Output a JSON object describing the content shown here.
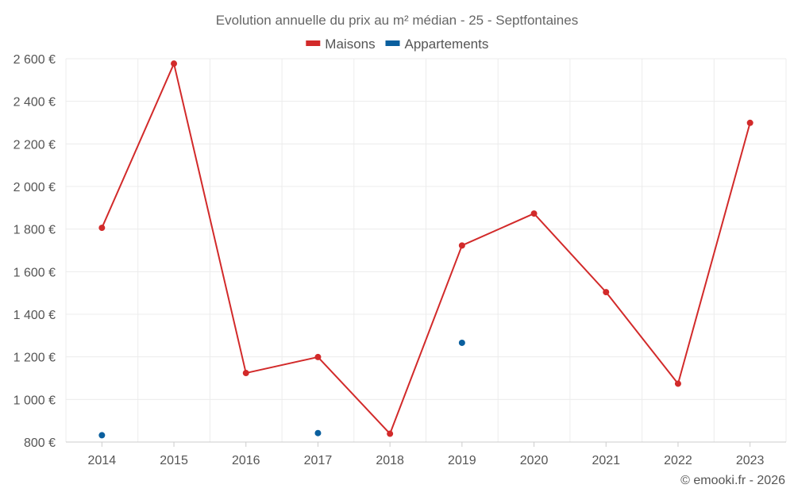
{
  "chart_data": {
    "type": "line",
    "title": "Evolution annuelle du prix au m² médian - 25 - Septfontaines",
    "categories": [
      "2014",
      "2015",
      "2016",
      "2017",
      "2018",
      "2019",
      "2020",
      "2021",
      "2022",
      "2023"
    ],
    "series": [
      {
        "name": "Maisons",
        "color": "#d22a2a",
        "values": [
          1806,
          2577,
          1124,
          1199,
          839,
          1723,
          1873,
          1504,
          1074,
          2299
        ]
      },
      {
        "name": "Appartements",
        "color": "#0a5f9e",
        "values": [
          832,
          null,
          null,
          842,
          null,
          1266,
          null,
          null,
          null,
          null
        ]
      }
    ],
    "ylim": [
      800,
      2600
    ],
    "yticks": [
      800,
      1000,
      1200,
      1400,
      1600,
      1800,
      2000,
      2200,
      2400,
      2600
    ],
    "ytick_labels": [
      "800 €",
      "1 000 €",
      "1 200 €",
      "1 400 €",
      "1 600 €",
      "1 800 €",
      "2 000 €",
      "2 200 €",
      "2 400 €",
      "2 600 €"
    ],
    "grid": true,
    "legend": "top-center",
    "xlabel": "",
    "ylabel": ""
  },
  "credit": "© emooki.fr - 2026"
}
